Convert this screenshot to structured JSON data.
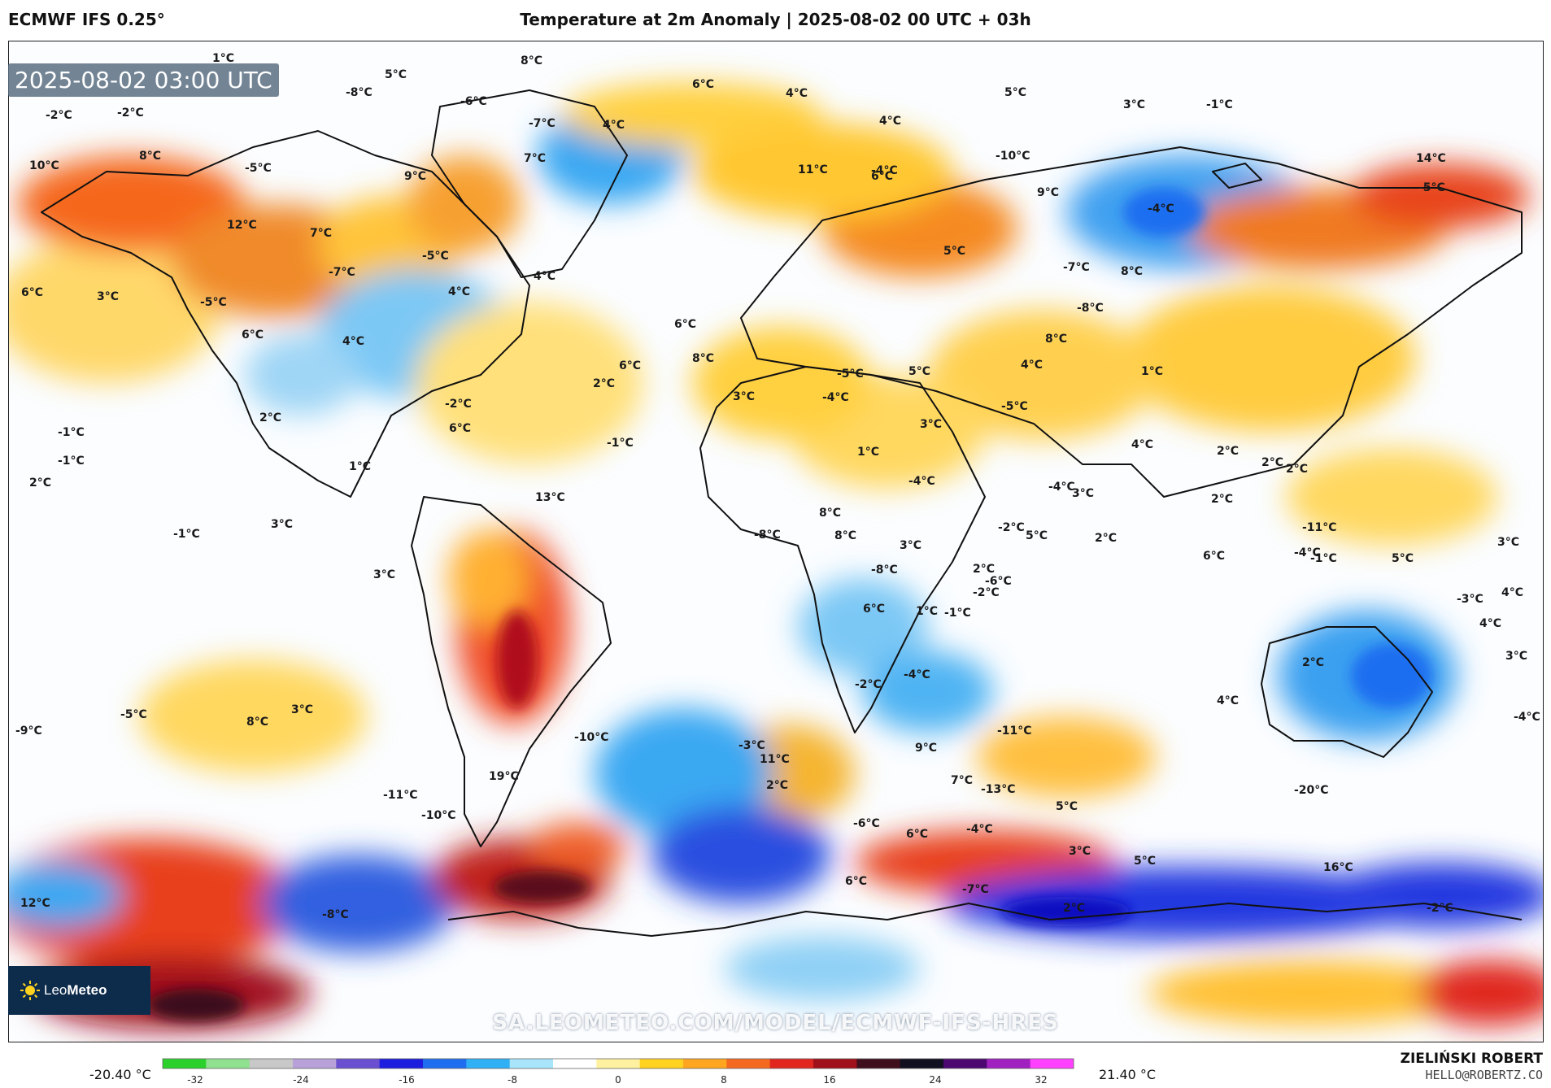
{
  "header": {
    "model": "ECMWF IFS 0.25°",
    "title": "Temperature at 2m Anomaly | 2025-08-02 00 UTC + 03h"
  },
  "map": {
    "timestamp": "2025-08-02 03:00 UTC",
    "watermark_url": "SA.LEOMETEO.COM/MODEL/ECMWF-IFS-HRES",
    "logo_text_light": "Leo",
    "logo_text_bold": "Meteo",
    "anomaly_labels": [
      "1°C",
      "-2°C",
      "-2°C",
      "10°C",
      "8°C",
      "-5°C",
      "12°C",
      "7°C",
      "9°C",
      "5°C",
      "-8°C",
      "-6°C",
      "8°C",
      "-7°C",
      "7°C",
      "4°C",
      "6°C",
      "4°C",
      "4°C",
      "6°C",
      "11°C",
      "-4°C",
      "5°C",
      "-10°C",
      "14°C",
      "3°C",
      "-1°C",
      "9°C",
      "-5°C",
      "-4°C",
      "6°C",
      "3°C",
      "-5°C",
      "6°C",
      "-7°C",
      "-5°C",
      "4°C",
      "4°C",
      "4°C",
      "5°C",
      "-7°C",
      "8°C",
      "-8°C",
      "8°C",
      "4°C",
      "6°C",
      "8°C",
      "-5°C",
      "2°C",
      "6°C",
      "5°C",
      "3°C",
      "1°C",
      "-5°C",
      "2°C",
      "2°C",
      "3°C",
      "-1°C",
      "2°C",
      "6°C",
      "-1°C",
      "1°C",
      "-2°C",
      "-4°C",
      "4°C",
      "-4°C",
      "2°C",
      "-1°C",
      "2°C",
      "3°C",
      "-4°C",
      "1°C",
      "-1°C",
      "13°C",
      "2°C",
      "8°C",
      "-8°C",
      "8°C",
      "-8°C",
      "2°C",
      "3°C",
      "3°C",
      "-1°C",
      "3°C",
      "-2°C",
      "2°C",
      "5°C",
      "-11°C",
      "-4°C",
      "6°C",
      "-6°C",
      "5°C",
      "3°C",
      "-3°C",
      "-1°C",
      "6°C",
      "-2°C",
      "4°C",
      "-2°C",
      "1°C",
      "-4°C",
      "4°C",
      "2°C",
      "3°C",
      "-10°C",
      "-3°C",
      "9°C",
      "7°C",
      "-11°C",
      "4°C",
      "-4°C",
      "-9°C",
      "-5°C",
      "8°C",
      "3°C",
      "19°C",
      "11°C",
      "2°C",
      "-13°C",
      "-20°C",
      "-11°C",
      "-10°C",
      "-6°C",
      "-4°C",
      "6°C",
      "5°C",
      "5°C",
      "6°C",
      "-7°C",
      "3°C",
      "-8°C",
      "2°C",
      "16°C",
      "-2°C",
      "12°C"
    ]
  },
  "legend": {
    "min_label": "-20.40 °C",
    "max_label": "21.40 °C",
    "ticks": [
      "-32",
      "-24",
      "-16",
      "-8",
      "0",
      "8",
      "16",
      "24",
      "32"
    ],
    "colors": [
      "#2bd12b",
      "#8fe08f",
      "#c8c8c8",
      "#b8a0d8",
      "#6a50d0",
      "#1d1de0",
      "#1f6ef0",
      "#30b0f5",
      "#a8e4fa",
      "#ffffff",
      "#fff1a0",
      "#ffd21f",
      "#ffa51f",
      "#f5681f",
      "#e0261f",
      "#a0101a",
      "#400f1e",
      "#101020",
      "#4a0870",
      "#a020c0",
      "#ff40ff"
    ]
  },
  "credits": {
    "author": "ZIELIŃSKI ROBERT",
    "email": "HELLO@ROBERTZ.CO"
  }
}
